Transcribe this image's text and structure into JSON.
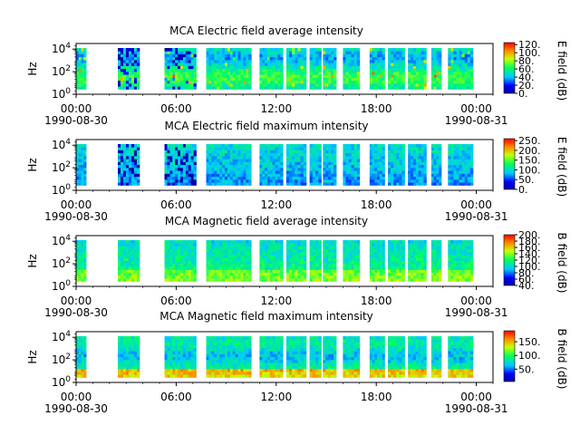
{
  "chart_data": [
    {
      "type": "heatmap",
      "title": "MCA  Electric field average intensity",
      "ylabel": "Hz",
      "y_ticks": [
        "10^0",
        "10^2",
        "10^4"
      ],
      "x_ticks": [
        "00:00",
        "06:00",
        "12:00",
        "18:00",
        "00:00"
      ],
      "x_dates": [
        "1990-08-30",
        "1990-08-31"
      ],
      "colorbar": {
        "label": "E field (dB)",
        "ticks": [
          "0.",
          "20.",
          "40.",
          "60.",
          "80.",
          "100.",
          "120."
        ],
        "range": [
          0,
          125
        ]
      },
      "y_log_range": [
        0,
        4.5
      ],
      "data_segments_hours": [
        [
          0.0,
          0.6
        ],
        [
          2.5,
          3.8
        ],
        [
          5.3,
          7.2
        ],
        [
          7.8,
          10.5
        ],
        [
          11.0,
          12.4
        ],
        [
          12.6,
          13.8
        ],
        [
          14.0,
          14.7
        ],
        [
          14.8,
          15.6
        ],
        [
          16.0,
          17.0
        ],
        [
          17.6,
          18.5
        ],
        [
          18.7,
          19.7
        ],
        [
          19.9,
          21.0
        ],
        [
          21.3,
          21.9
        ],
        [
          22.3,
          23.8
        ]
      ],
      "low_bins": [
        [
          "1990-08-30 03:00",
          0.4
        ],
        [
          "1990-08-30 06:00",
          0.55
        ],
        [
          "1990-08-30 09:30",
          0.6
        ],
        [
          "1990-08-30 15:00",
          0.7
        ],
        [
          "1990-08-30 18:00",
          0.6
        ]
      ]
    },
    {
      "type": "heatmap",
      "title": "MCA  Electric field maximum intensity",
      "ylabel": "Hz",
      "y_ticks": [
        "10^0",
        "10^2",
        "10^4"
      ],
      "x_ticks": [
        "00:00",
        "06:00",
        "12:00",
        "18:00",
        "00:00"
      ],
      "x_dates": [
        "1990-08-30",
        "1990-08-31"
      ],
      "colorbar": {
        "label": "E field (dB)",
        "ticks": [
          "0.",
          "50.",
          "100.",
          "150.",
          "200.",
          "250."
        ],
        "range": [
          0,
          260
        ]
      },
      "y_log_range": [
        0,
        4.5
      ],
      "data_segments_hours": [
        [
          0.0,
          0.6
        ],
        [
          2.5,
          3.8
        ],
        [
          5.3,
          7.2
        ],
        [
          7.8,
          10.5
        ],
        [
          11.0,
          12.4
        ],
        [
          12.6,
          13.8
        ],
        [
          14.0,
          14.7
        ],
        [
          14.8,
          15.6
        ],
        [
          16.0,
          17.0
        ],
        [
          17.6,
          18.5
        ],
        [
          18.7,
          19.7
        ],
        [
          19.9,
          21.0
        ],
        [
          21.3,
          21.9
        ],
        [
          22.3,
          23.8
        ]
      ]
    },
    {
      "type": "heatmap",
      "title": "MCA  Magnetic field average intensity",
      "ylabel": "Hz",
      "y_ticks": [
        "10^0",
        "10^2",
        "10^4"
      ],
      "x_ticks": [
        "00:00",
        "06:00",
        "12:00",
        "18:00",
        "00:00"
      ],
      "x_dates": [
        "1990-08-30",
        "1990-08-31"
      ],
      "colorbar": {
        "label": "B field (dB)",
        "ticks": [
          "40.",
          "60.",
          "80.",
          "100.",
          "120.",
          "140.",
          "160.",
          "180.",
          "200."
        ],
        "range": [
          40,
          200
        ]
      },
      "y_log_range": [
        0,
        4.5
      ],
      "data_segments_hours": [
        [
          0.0,
          0.6
        ],
        [
          2.5,
          3.8
        ],
        [
          5.3,
          7.2
        ],
        [
          7.8,
          10.5
        ],
        [
          11.0,
          12.4
        ],
        [
          12.6,
          13.8
        ],
        [
          14.0,
          14.7
        ],
        [
          14.8,
          15.6
        ],
        [
          16.0,
          17.0
        ],
        [
          17.6,
          18.5
        ],
        [
          18.7,
          19.7
        ],
        [
          19.9,
          21.0
        ],
        [
          21.3,
          21.9
        ],
        [
          22.3,
          23.8
        ]
      ]
    },
    {
      "type": "heatmap",
      "title": "MCA  Magnetic field maximum intensity",
      "ylabel": "Hz",
      "y_ticks": [
        "10^0",
        "10^2",
        "10^4"
      ],
      "x_ticks": [
        "00:00",
        "06:00",
        "12:00",
        "18:00",
        "00:00"
      ],
      "x_dates": [
        "1990-08-30",
        "1990-08-31"
      ],
      "colorbar": {
        "label": "B field (dB)",
        "ticks": [
          "50.",
          "100.",
          "150."
        ],
        "range": [
          5,
          190
        ]
      },
      "y_log_range": [
        0,
        4.5
      ],
      "data_segments_hours": [
        [
          0.0,
          0.6
        ],
        [
          2.5,
          3.8
        ],
        [
          5.3,
          7.2
        ],
        [
          7.8,
          10.5
        ],
        [
          11.0,
          12.4
        ],
        [
          12.6,
          13.8
        ],
        [
          14.0,
          14.7
        ],
        [
          14.8,
          15.6
        ],
        [
          16.0,
          17.0
        ],
        [
          17.6,
          18.5
        ],
        [
          18.7,
          19.7
        ],
        [
          19.9,
          21.0
        ],
        [
          21.3,
          21.9
        ],
        [
          22.3,
          23.8
        ]
      ]
    }
  ]
}
